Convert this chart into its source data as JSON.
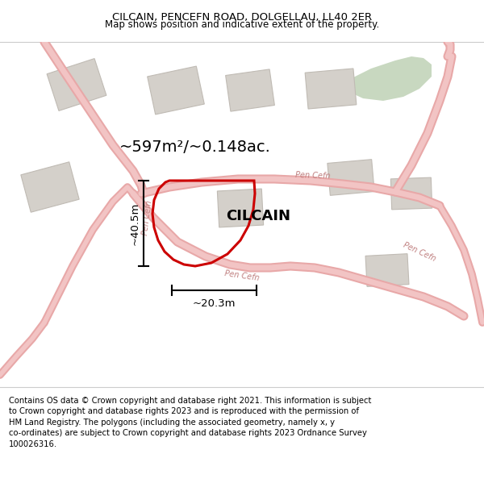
{
  "title": "CILCAIN, PENCEFN ROAD, DOLGELLAU, LL40 2ER",
  "subtitle": "Map shows position and indicative extent of the property.",
  "footer": "Contains OS data © Crown copyright and database right 2021. This information is subject\nto Crown copyright and database rights 2023 and is reproduced with the permission of\nHM Land Registry. The polygons (including the associated geometry, namely x, y\nco-ordinates) are subject to Crown copyright and database rights 2023 Ordnance Survey\n100026316.",
  "bg_color": "#f5f3f0",
  "map_bg": "#f0eeeb",
  "road_color": "#f2c4c4",
  "road_edge_color": "#e8a8a8",
  "building_color": "#d4d0ca",
  "building_edge": "#c0bbb4",
  "green_color": "#c8d8c0",
  "property_color": "#cc0000",
  "property_label": "CILCAIN",
  "area_label": "~597m²/~0.148ac.",
  "width_label": "~20.3m",
  "height_label": "~40.5m"
}
